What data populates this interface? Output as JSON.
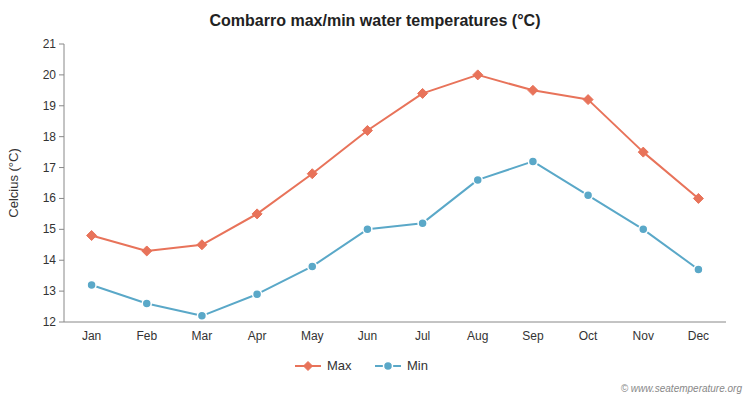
{
  "chart_data": {
    "type": "line",
    "title": "Combarro max/min water temperatures (°C)",
    "y_label": "Celcius (°C)",
    "categories": [
      "Jan",
      "Feb",
      "Mar",
      "Apr",
      "May",
      "Jun",
      "Jul",
      "Aug",
      "Sep",
      "Oct",
      "Nov",
      "Dec"
    ],
    "series": [
      {
        "name": "Max",
        "color": "#e8735a",
        "marker": "diamond",
        "values": [
          14.8,
          14.3,
          14.5,
          15.5,
          16.8,
          18.2,
          19.4,
          20.0,
          19.5,
          19.2,
          17.5,
          16.0
        ]
      },
      {
        "name": "Min",
        "color": "#5aa8c8",
        "marker": "circle",
        "values": [
          13.2,
          12.6,
          12.2,
          12.9,
          13.8,
          15.0,
          15.2,
          16.6,
          17.2,
          16.1,
          15.0,
          13.7
        ]
      }
    ],
    "ylim": [
      12,
      21
    ],
    "yticks": [
      12,
      13,
      14,
      15,
      16,
      17,
      18,
      19,
      20,
      21
    ],
    "grid": false,
    "legend": "bottom",
    "annotations": [
      "© www.seatemperature.org"
    ]
  }
}
